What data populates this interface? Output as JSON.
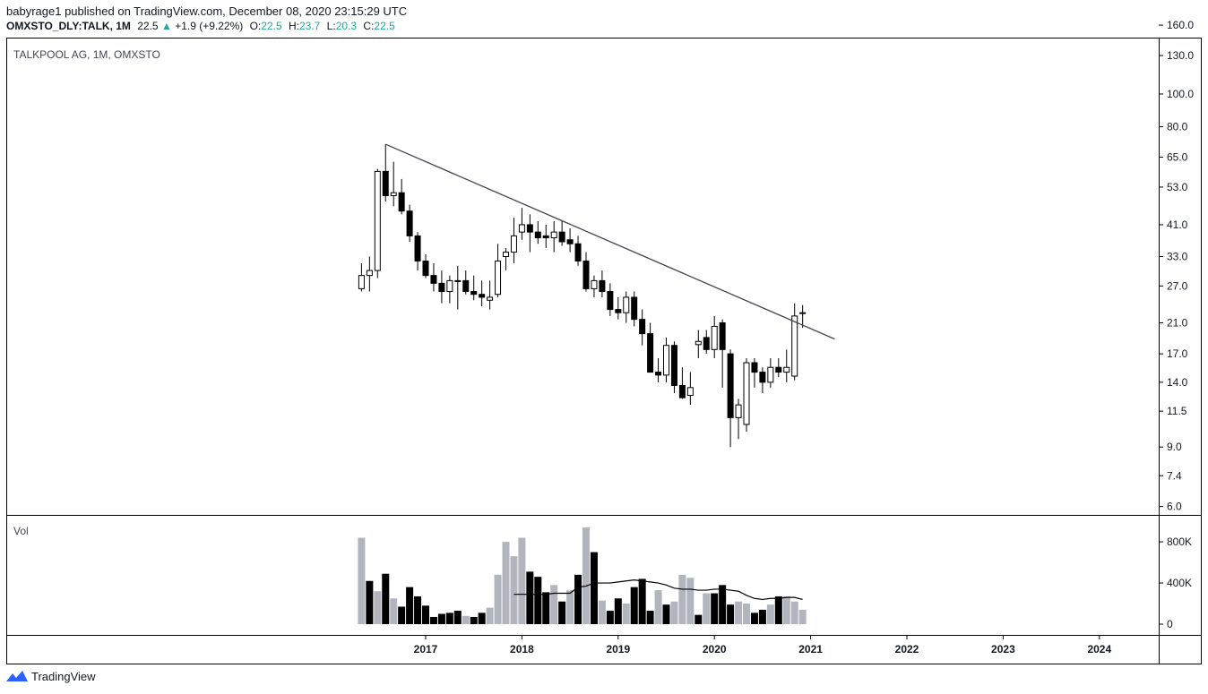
{
  "header": {
    "author": "babyrage1",
    "published_text": "published on TradingView.com, December 08, 2020 23:15:29 UTC",
    "symbol": "OMXSTO_DLY:TALK, 1M",
    "last": "22.5",
    "change_arrow": "▲",
    "change": "+1.9 (+9.22%)",
    "o_label": "O:",
    "o_value": "22.5",
    "h_label": "H:",
    "h_value": "23.7",
    "l_label": "L:",
    "l_value": "20.3",
    "c_label": "C:",
    "c_value": "22.5"
  },
  "colors": {
    "up_body": "#ffffff",
    "down_body": "#000000",
    "wick": "#000000",
    "vol_up": "#b2b5be",
    "vol_down": "#000000",
    "trendline": "#434651",
    "ma_line": "#000000",
    "grid_border": "#000000",
    "accent": "#26a69a"
  },
  "footer": {
    "brand": "TradingView",
    "logo_icon": "tradingview-logo-icon"
  },
  "chart_data": [
    {
      "type": "candlestick",
      "title": "TALKPOOL AG, 1M, OMXSTO",
      "scale": "log",
      "ylim": [
        5.7,
        166
      ],
      "y_ticks": [
        "160.0",
        "130.0",
        "100.0",
        "80.0",
        "65.0",
        "53.0",
        "41.0",
        "33.0",
        "27.0",
        "21.0",
        "17.0",
        "14.0",
        "11.5",
        "9.0",
        "7.4",
        "6.0"
      ],
      "x_ticks": [
        {
          "label": "2017",
          "date": "2017-01"
        },
        {
          "label": "2018",
          "date": "2018-01"
        },
        {
          "label": "2019",
          "date": "2019-01"
        },
        {
          "label": "2020",
          "date": "2020-01"
        },
        {
          "label": "2021",
          "date": "2021-01"
        },
        {
          "label": "2022",
          "date": "2022-01"
        },
        {
          "label": "2023",
          "date": "2023-01"
        },
        {
          "label": "2024",
          "date": "2024-01"
        }
      ],
      "x_range": [
        "2016-01",
        "2024-07"
      ],
      "candles": [
        {
          "date": "2016-05",
          "o": 26.5,
          "h": 31.5,
          "l": 26.0,
          "c": 29.0
        },
        {
          "date": "2016-06",
          "o": 29.0,
          "h": 33.0,
          "l": 26.0,
          "c": 30.0
        },
        {
          "date": "2016-07",
          "o": 30.0,
          "h": 60.0,
          "l": 28.5,
          "c": 59.0
        },
        {
          "date": "2016-08",
          "o": 59.0,
          "h": 71.0,
          "l": 48.0,
          "c": 50.0
        },
        {
          "date": "2016-09",
          "o": 50.0,
          "h": 63.0,
          "l": 46.5,
          "c": 51.0
        },
        {
          "date": "2016-10",
          "o": 51.0,
          "h": 56.0,
          "l": 44.0,
          "c": 45.0
        },
        {
          "date": "2016-11",
          "o": 45.0,
          "h": 47.0,
          "l": 36.5,
          "c": 38.0
        },
        {
          "date": "2016-12",
          "o": 38.0,
          "h": 39.0,
          "l": 30.0,
          "c": 32.0
        },
        {
          "date": "2017-01",
          "o": 32.0,
          "h": 33.5,
          "l": 28.5,
          "c": 29.0
        },
        {
          "date": "2017-02",
          "o": 29.0,
          "h": 31.5,
          "l": 26.0,
          "c": 27.5
        },
        {
          "date": "2017-03",
          "o": 27.5,
          "h": 30.0,
          "l": 24.0,
          "c": 26.0
        },
        {
          "date": "2017-04",
          "o": 26.0,
          "h": 29.0,
          "l": 24.0,
          "c": 28.0
        },
        {
          "date": "2017-05",
          "o": 28.0,
          "h": 31.0,
          "l": 23.0,
          "c": 28.0
        },
        {
          "date": "2017-06",
          "o": 28.0,
          "h": 30.0,
          "l": 25.5,
          "c": 26.0
        },
        {
          "date": "2017-07",
          "o": 26.0,
          "h": 29.0,
          "l": 24.5,
          "c": 25.5
        },
        {
          "date": "2017-08",
          "o": 25.5,
          "h": 28.0,
          "l": 23.5,
          "c": 25.0
        },
        {
          "date": "2017-09",
          "o": 24.5,
          "h": 28.0,
          "l": 23.0,
          "c": 25.0
        },
        {
          "date": "2017-10",
          "o": 25.5,
          "h": 36.0,
          "l": 25.0,
          "c": 32.0
        },
        {
          "date": "2017-11",
          "o": 33.0,
          "h": 35.0,
          "l": 30.0,
          "c": 34.0
        },
        {
          "date": "2017-12",
          "o": 34.0,
          "h": 43.0,
          "l": 31.5,
          "c": 38.0
        },
        {
          "date": "2018-01",
          "o": 39.0,
          "h": 46.0,
          "l": 37.0,
          "c": 41.0
        },
        {
          "date": "2018-02",
          "o": 41.0,
          "h": 44.0,
          "l": 34.0,
          "c": 39.0
        },
        {
          "date": "2018-03",
          "o": 39.0,
          "h": 42.0,
          "l": 36.0,
          "c": 37.5
        },
        {
          "date": "2018-04",
          "o": 38.0,
          "h": 41.0,
          "l": 35.0,
          "c": 37.5
        },
        {
          "date": "2018-05",
          "o": 37.5,
          "h": 42.0,
          "l": 34.0,
          "c": 39.0
        },
        {
          "date": "2018-06",
          "o": 39.0,
          "h": 42.0,
          "l": 35.5,
          "c": 36.5
        },
        {
          "date": "2018-07",
          "o": 37.0,
          "h": 40.0,
          "l": 34.0,
          "c": 36.0
        },
        {
          "date": "2018-08",
          "o": 36.0,
          "h": 38.0,
          "l": 31.0,
          "c": 32.0
        },
        {
          "date": "2018-09",
          "o": 32.0,
          "h": 34.0,
          "l": 26.0,
          "c": 26.5
        },
        {
          "date": "2018-10",
          "o": 26.5,
          "h": 29.0,
          "l": 25.0,
          "c": 28.0
        },
        {
          "date": "2018-11",
          "o": 28.0,
          "h": 30.0,
          "l": 25.0,
          "c": 26.0
        },
        {
          "date": "2018-12",
          "o": 26.0,
          "h": 27.5,
          "l": 22.0,
          "c": 23.0
        },
        {
          "date": "2019-01",
          "o": 23.0,
          "h": 25.0,
          "l": 21.5,
          "c": 22.5
        },
        {
          "date": "2019-02",
          "o": 22.5,
          "h": 26.0,
          "l": 21.0,
          "c": 25.0
        },
        {
          "date": "2019-03",
          "o": 25.0,
          "h": 26.0,
          "l": 20.5,
          "c": 21.5
        },
        {
          "date": "2019-04",
          "o": 21.5,
          "h": 23.0,
          "l": 18.0,
          "c": 19.5
        },
        {
          "date": "2019-05",
          "o": 19.5,
          "h": 21.0,
          "l": 15.0,
          "c": 15.0
        },
        {
          "date": "2019-06",
          "o": 15.0,
          "h": 16.5,
          "l": 14.0,
          "c": 14.7
        },
        {
          "date": "2019-07",
          "o": 14.7,
          "h": 19.0,
          "l": 14.0,
          "c": 18.0
        },
        {
          "date": "2019-08",
          "o": 18.0,
          "h": 18.5,
          "l": 13.0,
          "c": 13.7
        },
        {
          "date": "2019-09",
          "o": 13.7,
          "h": 15.5,
          "l": 12.5,
          "c": 12.6
        },
        {
          "date": "2019-10",
          "o": 12.8,
          "h": 15.0,
          "l": 12.0,
          "c": 13.5
        },
        {
          "date": "2019-11",
          "o": 18.1,
          "h": 20.0,
          "l": 16.5,
          "c": 18.5
        },
        {
          "date": "2019-12",
          "o": 19.0,
          "h": 20.0,
          "l": 17.0,
          "c": 17.5
        },
        {
          "date": "2020-01",
          "o": 17.5,
          "h": 22.0,
          "l": 16.5,
          "c": 20.5
        },
        {
          "date": "2020-02",
          "o": 21.0,
          "h": 21.5,
          "l": 13.5,
          "c": 17.5
        },
        {
          "date": "2020-03",
          "o": 17.0,
          "h": 17.5,
          "l": 9.0,
          "c": 11.0
        },
        {
          "date": "2020-04",
          "o": 11.0,
          "h": 12.5,
          "l": 9.5,
          "c": 12.0
        },
        {
          "date": "2020-05",
          "o": 10.5,
          "h": 16.5,
          "l": 10.0,
          "c": 16.0
        },
        {
          "date": "2020-06",
          "o": 16.0,
          "h": 16.5,
          "l": 13.5,
          "c": 15.0
        },
        {
          "date": "2020-07",
          "o": 15.0,
          "h": 15.5,
          "l": 13.0,
          "c": 14.0
        },
        {
          "date": "2020-08",
          "o": 14.0,
          "h": 16.5,
          "l": 13.5,
          "c": 15.5
        },
        {
          "date": "2020-09",
          "o": 15.5,
          "h": 16.5,
          "l": 14.5,
          "c": 15.0
        },
        {
          "date": "2020-10",
          "o": 15.0,
          "h": 17.5,
          "l": 14.0,
          "c": 15.5
        },
        {
          "date": "2020-11",
          "o": 14.6,
          "h": 24.0,
          "l": 14.2,
          "c": 22.0
        },
        {
          "date": "2020-12",
          "o": 22.5,
          "h": 23.7,
          "l": 20.3,
          "c": 22.5
        }
      ],
      "trendline": {
        "from": {
          "date": "2016-08",
          "price": 71.0
        },
        "to": {
          "date": "2021-04",
          "price": 18.8
        }
      }
    },
    {
      "type": "bar",
      "title": "Vol",
      "y_ticks": [
        "800K",
        "400K",
        "0"
      ],
      "ylim": [
        0,
        940000
      ],
      "volumes": [
        840000,
        420000,
        320000,
        490000,
        250000,
        170000,
        360000,
        270000,
        180000,
        70000,
        100000,
        110000,
        130000,
        80000,
        70000,
        110000,
        160000,
        480000,
        800000,
        660000,
        840000,
        510000,
        460000,
        310000,
        380000,
        220000,
        330000,
        480000,
        940000,
        700000,
        230000,
        130000,
        250000,
        200000,
        360000,
        440000,
        130000,
        330000,
        190000,
        220000,
        480000,
        450000,
        90000,
        300000,
        300000,
        380000,
        190000,
        220000,
        200000,
        110000,
        140000,
        190000,
        270000,
        270000,
        220000,
        140000
      ],
      "vol_is_up": [
        true,
        false,
        true,
        false,
        true,
        false,
        false,
        false,
        false,
        false,
        false,
        false,
        false,
        true,
        false,
        false,
        true,
        true,
        true,
        true,
        true,
        false,
        false,
        false,
        true,
        false,
        true,
        false,
        true,
        false,
        true,
        false,
        false,
        true,
        false,
        false,
        false,
        true,
        false,
        true,
        true,
        true,
        false,
        true,
        false,
        false,
        false,
        true,
        true,
        false,
        false,
        true,
        false,
        true,
        true,
        true
      ],
      "ma": [
        null,
        null,
        null,
        null,
        null,
        null,
        null,
        null,
        null,
        null,
        null,
        null,
        null,
        null,
        null,
        null,
        null,
        null,
        null,
        290000,
        290000,
        290000,
        290000,
        290000,
        300000,
        300000,
        300000,
        360000,
        370000,
        400000,
        400000,
        400000,
        410000,
        420000,
        430000,
        420000,
        410000,
        400000,
        380000,
        350000,
        340000,
        340000,
        330000,
        330000,
        340000,
        340000,
        330000,
        320000,
        280000,
        250000,
        240000,
        250000,
        250000,
        260000,
        260000,
        240000
      ]
    }
  ]
}
